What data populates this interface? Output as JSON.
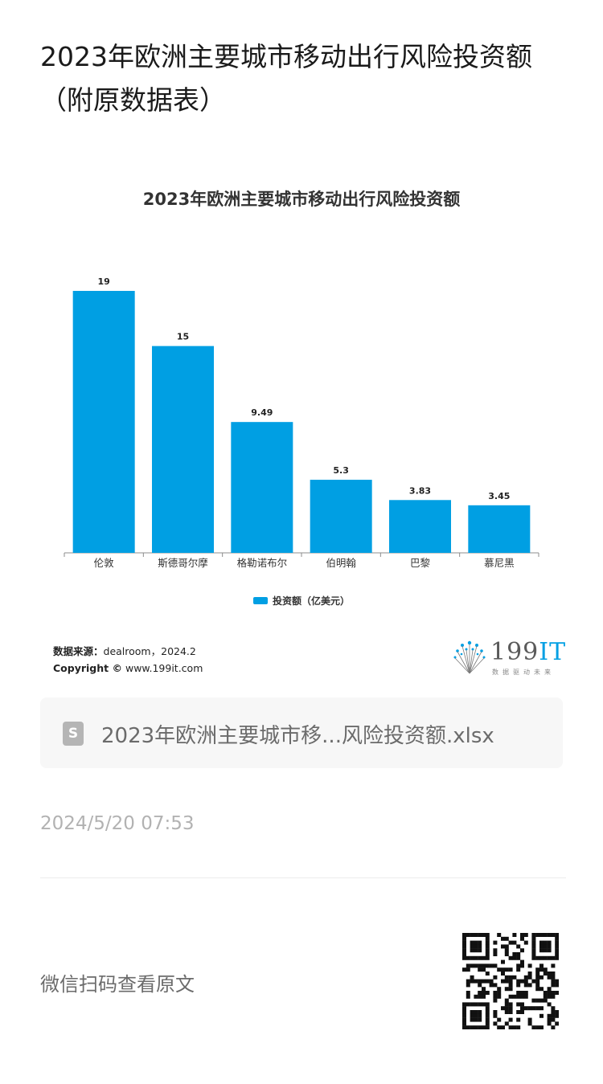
{
  "article": {
    "title": "2023年欧洲主要城市移动出行风险投资额（附原数据表）"
  },
  "chart_data": {
    "type": "bar",
    "title": "2023年欧洲主要城市移动出行风险投资额",
    "categories": [
      "伦敦",
      "斯德哥尔摩",
      "格勒诺布尔",
      "伯明翰",
      "巴黎",
      "慕尼黑"
    ],
    "series": [
      {
        "name": "投资额（亿美元）",
        "values": [
          19,
          15,
          9.49,
          5.3,
          3.83,
          3.45
        ],
        "labels": [
          "19",
          "15",
          "9.49",
          "5.3",
          "3.83",
          "3.45"
        ],
        "color": "#009fe3"
      }
    ],
    "ylim": [
      0,
      19
    ],
    "xlabel": "",
    "ylabel": "",
    "grid": false,
    "legend_position": "bottom"
  },
  "source": {
    "label": "数据来源：",
    "text": "dealroom，2024.2",
    "copyright_label": "Copyright ©",
    "copyright_text": "www.199it.com"
  },
  "brand": {
    "logo_text": "199",
    "logo_accent": "IT",
    "tagline": "数据驱动未来"
  },
  "file": {
    "icon_letter": "S",
    "name": "2023年欧洲主要城市移...风险投资额.xlsx"
  },
  "meta": {
    "timestamp": "2024/5/20 07:53",
    "wechat_prompt": "微信扫码查看原文"
  }
}
